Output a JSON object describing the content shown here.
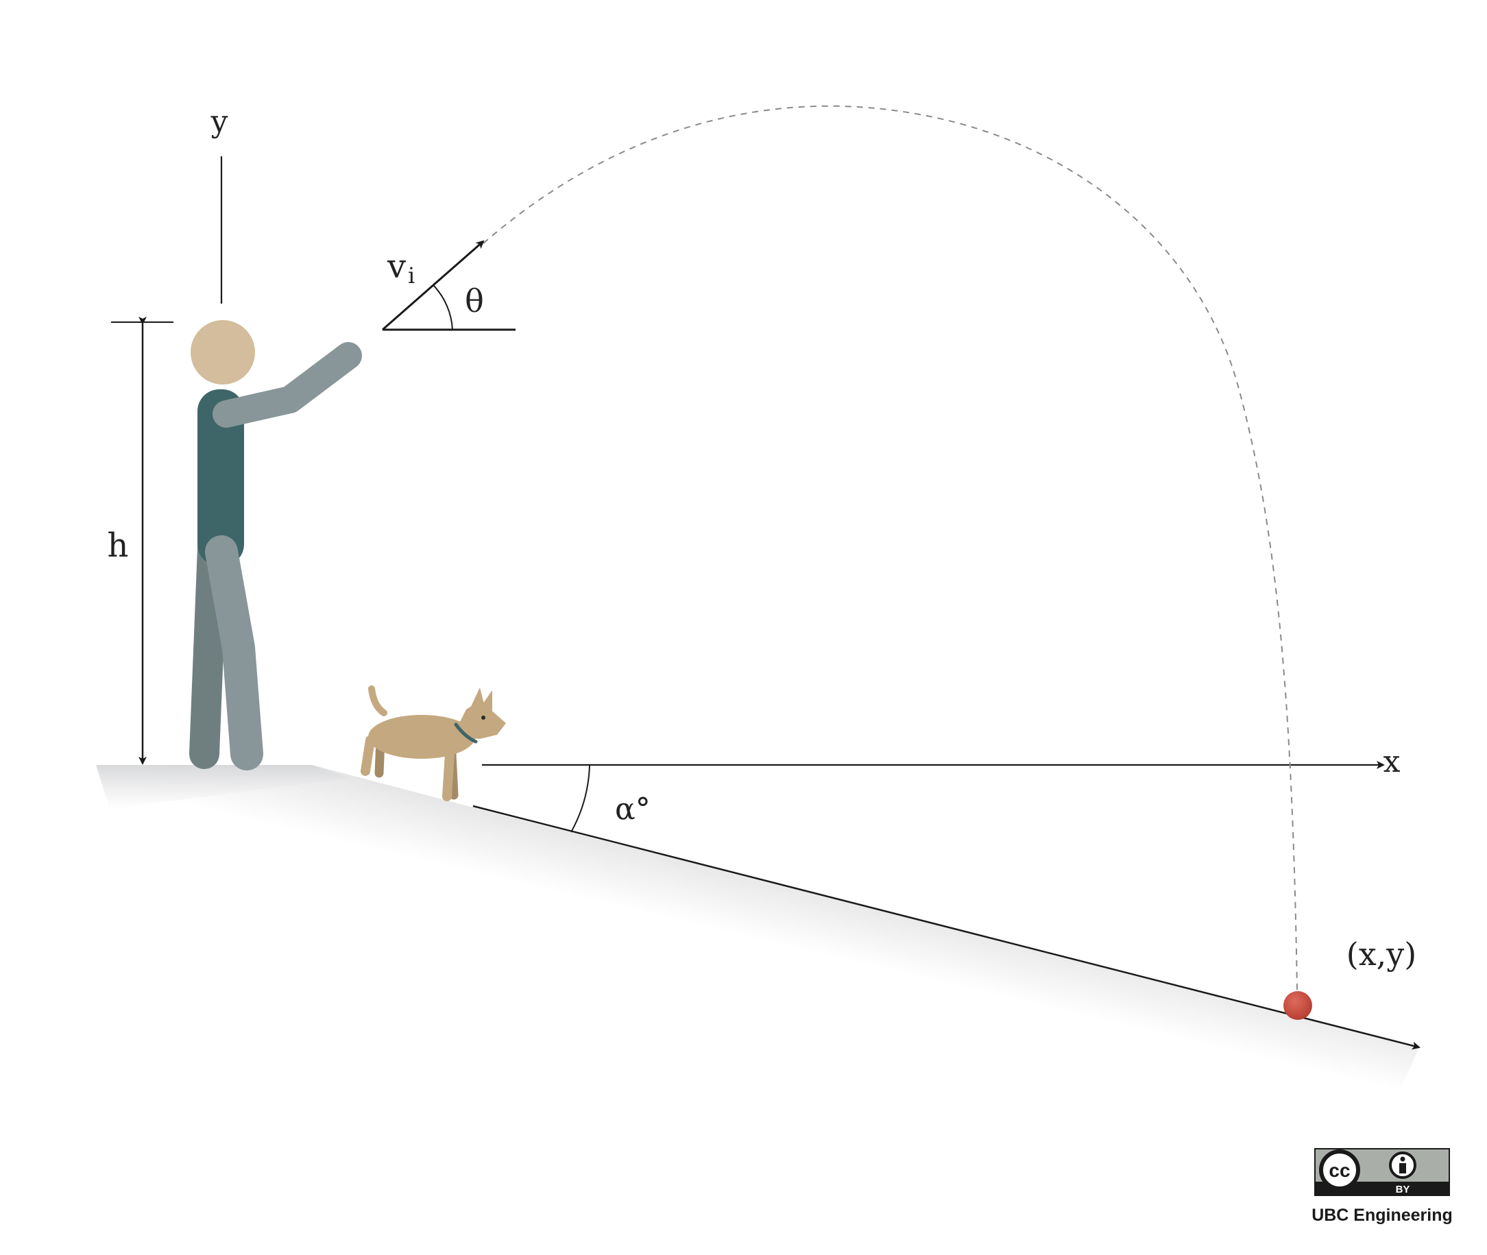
{
  "labels": {
    "y_axis": "y",
    "x_axis": "x",
    "height": "h",
    "velocity_main": "v",
    "velocity_sub": "i",
    "launch_angle": "θ",
    "slope_angle": "α°",
    "landing_point": "(x,y)"
  },
  "license": {
    "badge_text": "BY",
    "cc_text": "cc",
    "credit": "UBC Engineering"
  },
  "colors": {
    "skin": "#d3bd9c",
    "shirt": "#3e6567",
    "limbs": "#889699",
    "back_leg": "#6f7f80",
    "dog": "#c4a87f",
    "dog_collar": "#3e6567",
    "ball": "#c8493c",
    "line": "#1a1a1a",
    "trajectory": "#8a8a8a",
    "badge_bg": "#a9aea8"
  },
  "icons": [
    "cc-icon",
    "attribution-icon"
  ]
}
